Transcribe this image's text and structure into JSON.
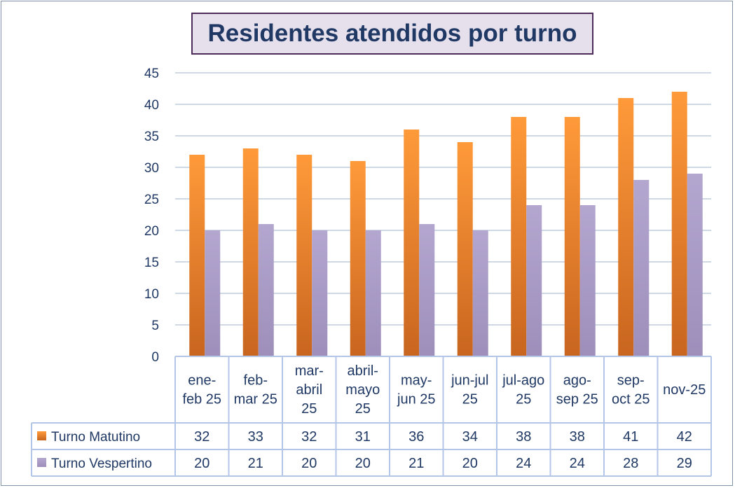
{
  "chart_data": {
    "type": "bar",
    "title": "Residentes atendidos por turno",
    "categories": [
      [
        "ene-",
        "feb 25"
      ],
      [
        "feb-",
        "mar 25"
      ],
      [
        "mar-",
        "abril",
        "25"
      ],
      [
        "abril-",
        "mayo",
        "25"
      ],
      [
        "may-",
        "jun 25"
      ],
      [
        "jun-jul",
        "25"
      ],
      [
        "jul-ago",
        "25"
      ],
      [
        "ago-",
        "sep 25"
      ],
      [
        "sep-",
        "oct 25"
      ],
      [
        "nov-25"
      ]
    ],
    "series": [
      {
        "name": "Turno Matutino",
        "values": [
          32,
          33,
          32,
          31,
          36,
          34,
          38,
          38,
          41,
          42
        ],
        "color": "#f28e2b"
      },
      {
        "name": "Turno Vespertino",
        "values": [
          20,
          21,
          20,
          20,
          21,
          20,
          24,
          24,
          28,
          29
        ],
        "color": "#a89bc4"
      }
    ],
    "ylim": [
      0,
      45
    ],
    "yticks": [
      0,
      5,
      10,
      15,
      20,
      25,
      30,
      35,
      40,
      45
    ],
    "grid": true,
    "legend": "data-table",
    "colors": {
      "title_text": "#1f3864",
      "title_border": "#4f2b5b",
      "title_fill": "#e6e0ec",
      "grid": "#cfd9e6",
      "table_border": "#b4c6e7",
      "text": "#1f3864"
    }
  }
}
